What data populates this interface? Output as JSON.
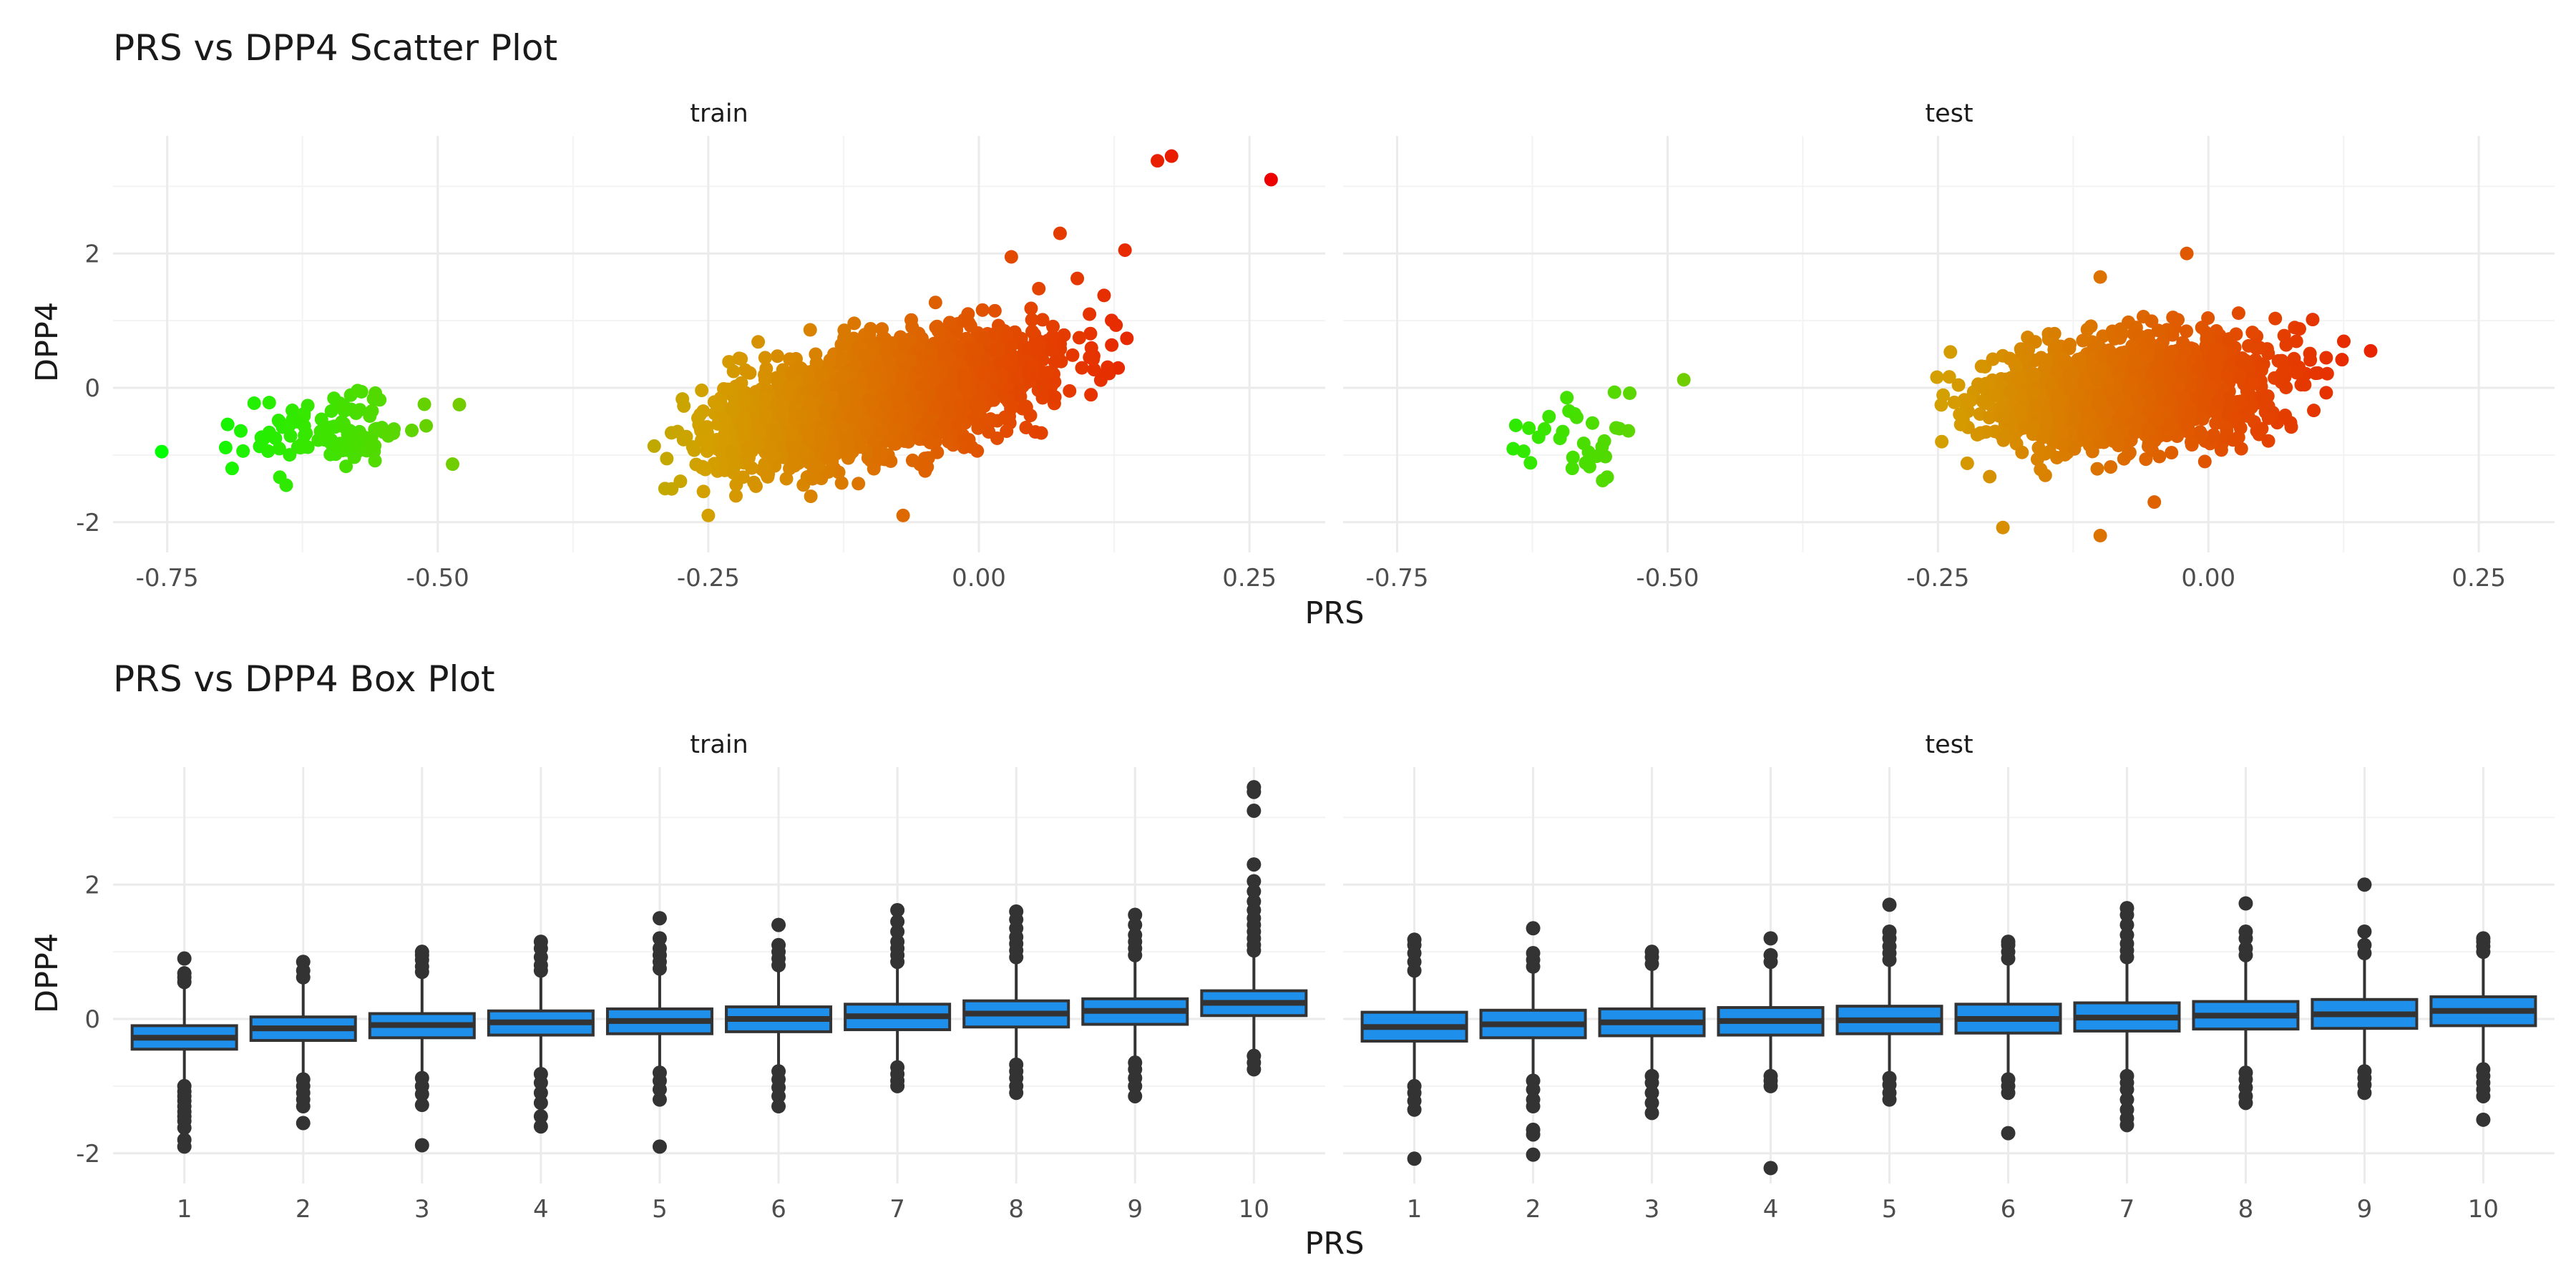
{
  "chart_data": [
    {
      "type": "scatter",
      "title": "PRS vs DPP4 Scatter Plot",
      "xlabel": "PRS",
      "ylabel": "DPP4",
      "facets": [
        "train",
        "test"
      ],
      "xlim": [
        -0.8,
        0.32
      ],
      "ylim": [
        -2.45,
        3.75
      ],
      "x_ticks": [
        -0.75,
        -0.5,
        -0.25,
        0.0,
        0.25
      ],
      "x_tick_labels": [
        "-0.75",
        "-0.50",
        "-0.25",
        "0.00",
        "0.25"
      ],
      "y_ticks": [
        -2,
        0,
        2
      ],
      "y_tick_labels": [
        "-2",
        "0",
        "2"
      ],
      "grid": true,
      "color_scale": {
        "low": "#00ff00",
        "mid": "#d4a000",
        "high": "#ee0000",
        "by": "PRS"
      },
      "panels": [
        {
          "name": "train",
          "clusters": [
            {
              "cx": -0.6,
              "cy": -0.65,
              "sx": 0.045,
              "sy": 0.28,
              "slope": 1.5,
              "n": 110,
              "xmin": -0.7,
              "xmax": -0.47
            },
            {
              "cx": -0.09,
              "cy": -0.15,
              "sx": 0.075,
              "sy": 0.38,
              "slope": 3.2,
              "n": 2600,
              "xmin": -0.3,
              "xmax": 0.15
            }
          ],
          "points": [
            {
              "x": -0.755,
              "y": -0.95
            },
            {
              "x": -0.69,
              "y": -1.2
            },
            {
              "x": -0.64,
              "y": -1.45
            },
            {
              "x": -0.48,
              "y": -0.25
            },
            {
              "x": 0.165,
              "y": 3.38
            },
            {
              "x": 0.178,
              "y": 3.45
            },
            {
              "x": 0.27,
              "y": 3.1
            },
            {
              "x": 0.135,
              "y": 2.05
            },
            {
              "x": 0.075,
              "y": 2.3
            },
            {
              "x": 0.03,
              "y": 1.95
            },
            {
              "x": -0.29,
              "y": -1.5
            },
            {
              "x": -0.25,
              "y": -1.9
            },
            {
              "x": -0.07,
              "y": -1.9
            }
          ]
        },
        {
          "name": "test",
          "clusters": [
            {
              "cx": -0.6,
              "cy": -0.75,
              "sx": 0.045,
              "sy": 0.3,
              "slope": 1.2,
              "n": 30,
              "xmin": -0.68,
              "xmax": -0.53
            },
            {
              "cx": -0.07,
              "cy": -0.05,
              "sx": 0.065,
              "sy": 0.4,
              "slope": 1.0,
              "n": 1500,
              "xmin": -0.26,
              "xmax": 0.13
            }
          ],
          "points": [
            {
              "x": -0.485,
              "y": 0.12
            },
            {
              "x": -0.535,
              "y": -0.08
            },
            {
              "x": -0.56,
              "y": -1.38
            },
            {
              "x": 0.15,
              "y": 0.55
            },
            {
              "x": -0.02,
              "y": 2.0
            },
            {
              "x": -0.1,
              "y": 1.65
            },
            {
              "x": -0.1,
              "y": -2.2
            },
            {
              "x": -0.19,
              "y": -2.08
            },
            {
              "x": -0.05,
              "y": -1.7
            }
          ]
        }
      ]
    },
    {
      "type": "box",
      "title": "PRS vs DPP4 Box Plot",
      "xlabel": "PRS",
      "ylabel": "DPP4",
      "facets": [
        "train",
        "test"
      ],
      "categories": [
        "1",
        "2",
        "3",
        "4",
        "5",
        "6",
        "7",
        "8",
        "9",
        "10"
      ],
      "ylim": [
        -2.45,
        3.75
      ],
      "y_ticks": [
        -2,
        0,
        2
      ],
      "y_tick_labels": [
        "-2",
        "0",
        "2"
      ],
      "box_color": "#1e8fea",
      "grid": true,
      "panels": [
        {
          "name": "train",
          "boxes": [
            {
              "q1": -0.45,
              "median": -0.28,
              "q3": -0.1,
              "wlo": -0.98,
              "whi": 0.45,
              "out": [
                0.55,
                0.62,
                0.68,
                0.9,
                -1.0,
                -1.08,
                -1.15,
                -1.22,
                -1.3,
                -1.38,
                -1.45,
                -1.52,
                -1.62,
                -1.8,
                -1.9
              ]
            },
            {
              "q1": -0.32,
              "median": -0.14,
              "q3": 0.03,
              "wlo": -0.85,
              "whi": 0.55,
              "out": [
                0.62,
                0.72,
                0.85,
                -0.9,
                -1.0,
                -1.1,
                -1.2,
                -1.3,
                -1.55
              ]
            },
            {
              "q1": -0.28,
              "median": -0.09,
              "q3": 0.08,
              "wlo": -0.82,
              "whi": 0.62,
              "out": [
                0.7,
                0.78,
                0.88,
                0.95,
                1.0,
                -0.88,
                -1.0,
                -1.12,
                -1.28,
                -1.88
              ]
            },
            {
              "q1": -0.24,
              "median": -0.05,
              "q3": 0.12,
              "wlo": -0.78,
              "whi": 0.66,
              "out": [
                0.72,
                0.8,
                0.92,
                1.05,
                1.15,
                -0.82,
                -0.95,
                -1.1,
                -1.25,
                -1.45,
                -1.6
              ]
            },
            {
              "q1": -0.22,
              "median": -0.03,
              "q3": 0.15,
              "wlo": -0.75,
              "whi": 0.7,
              "out": [
                0.75,
                0.85,
                0.95,
                1.05,
                1.2,
                1.5,
                -0.8,
                -0.92,
                -1.05,
                -1.2,
                -1.9
              ]
            },
            {
              "q1": -0.19,
              "median": 0.0,
              "q3": 0.18,
              "wlo": -0.72,
              "whi": 0.72,
              "out": [
                0.8,
                0.9,
                1.0,
                1.1,
                1.4,
                -0.78,
                -0.9,
                -1.02,
                -1.15,
                -1.3
              ]
            },
            {
              "q1": -0.16,
              "median": 0.04,
              "q3": 0.22,
              "wlo": -0.68,
              "whi": 0.78,
              "out": [
                0.85,
                0.95,
                1.05,
                1.15,
                1.3,
                1.45,
                1.62,
                -0.72,
                -0.82,
                -0.92,
                -1.0
              ]
            },
            {
              "q1": -0.12,
              "median": 0.08,
              "q3": 0.27,
              "wlo": -0.62,
              "whi": 0.85,
              "out": [
                0.92,
                1.02,
                1.12,
                1.22,
                1.35,
                1.48,
                1.6,
                -0.68,
                -0.78,
                -0.88,
                -1.0,
                -1.1
              ]
            },
            {
              "q1": -0.08,
              "median": 0.12,
              "q3": 0.3,
              "wlo": -0.58,
              "whi": 0.88,
              "out": [
                0.95,
                1.05,
                1.15,
                1.25,
                1.4,
                1.55,
                -0.65,
                -0.75,
                -0.88,
                -1.0,
                -1.15
              ]
            },
            {
              "q1": 0.05,
              "median": 0.24,
              "q3": 0.42,
              "wlo": -0.45,
              "whi": 0.95,
              "out": [
                1.02,
                1.1,
                1.2,
                1.3,
                1.4,
                1.5,
                1.62,
                1.75,
                1.9,
                2.05,
                2.3,
                3.1,
                3.38,
                3.45,
                -0.55,
                -0.65,
                -0.75
              ]
            }
          ]
        },
        {
          "name": "test",
          "boxes": [
            {
              "q1": -0.33,
              "median": -0.12,
              "q3": 0.1,
              "wlo": -0.95,
              "whi": 0.62,
              "out": [
                0.72,
                0.85,
                0.98,
                1.1,
                1.18,
                -1.0,
                -1.1,
                -1.22,
                -1.35,
                -2.08
              ]
            },
            {
              "q1": -0.28,
              "median": -0.08,
              "q3": 0.13,
              "wlo": -0.88,
              "whi": 0.72,
              "out": [
                0.78,
                0.88,
                0.98,
                1.35,
                -0.92,
                -1.05,
                -1.2,
                -1.3,
                -1.65,
                -1.72,
                -2.02
              ]
            },
            {
              "q1": -0.25,
              "median": -0.05,
              "q3": 0.15,
              "wlo": -0.8,
              "whi": 0.75,
              "out": [
                0.82,
                0.92,
                1.0,
                -0.85,
                -0.95,
                -1.1,
                -1.25,
                -1.4
              ]
            },
            {
              "q1": -0.24,
              "median": -0.03,
              "q3": 0.17,
              "wlo": -0.78,
              "whi": 0.78,
              "out": [
                0.85,
                0.95,
                1.2,
                -0.85,
                -0.92,
                -1.0,
                -2.22
              ]
            },
            {
              "q1": -0.22,
              "median": -0.02,
              "q3": 0.19,
              "wlo": -0.8,
              "whi": 0.8,
              "out": [
                0.88,
                0.98,
                1.08,
                1.2,
                1.3,
                1.7,
                -0.88,
                -0.98,
                -1.1,
                -1.2
              ]
            },
            {
              "q1": -0.21,
              "median": 0.0,
              "q3": 0.22,
              "wlo": -0.82,
              "whi": 0.82,
              "out": [
                0.9,
                1.0,
                1.1,
                1.15,
                -0.9,
                -1.0,
                -1.1,
                -1.7
              ]
            },
            {
              "q1": -0.18,
              "median": 0.02,
              "q3": 0.24,
              "wlo": -0.78,
              "whi": 0.85,
              "out": [
                0.92,
                1.02,
                1.12,
                1.25,
                1.4,
                1.55,
                1.65,
                -0.85,
                -0.95,
                -1.05,
                -1.2,
                -1.35,
                -1.48,
                -1.58
              ]
            },
            {
              "q1": -0.15,
              "median": 0.05,
              "q3": 0.26,
              "wlo": -0.72,
              "whi": 0.88,
              "out": [
                0.95,
                1.05,
                1.2,
                1.3,
                1.72,
                -0.8,
                -0.9,
                -1.02,
                -1.15,
                -1.25
              ]
            },
            {
              "q1": -0.14,
              "median": 0.07,
              "q3": 0.29,
              "wlo": -0.72,
              "whi": 0.9,
              "out": [
                0.98,
                1.1,
                1.3,
                2.0,
                -0.78,
                -0.88,
                -0.98,
                -1.1
              ]
            },
            {
              "q1": -0.1,
              "median": 0.12,
              "q3": 0.33,
              "wlo": -0.68,
              "whi": 0.95,
              "out": [
                1.0,
                1.08,
                1.15,
                1.2,
                -0.75,
                -0.85,
                -0.95,
                -1.05,
                -1.15,
                -1.5
              ]
            }
          ]
        }
      ]
    }
  ]
}
